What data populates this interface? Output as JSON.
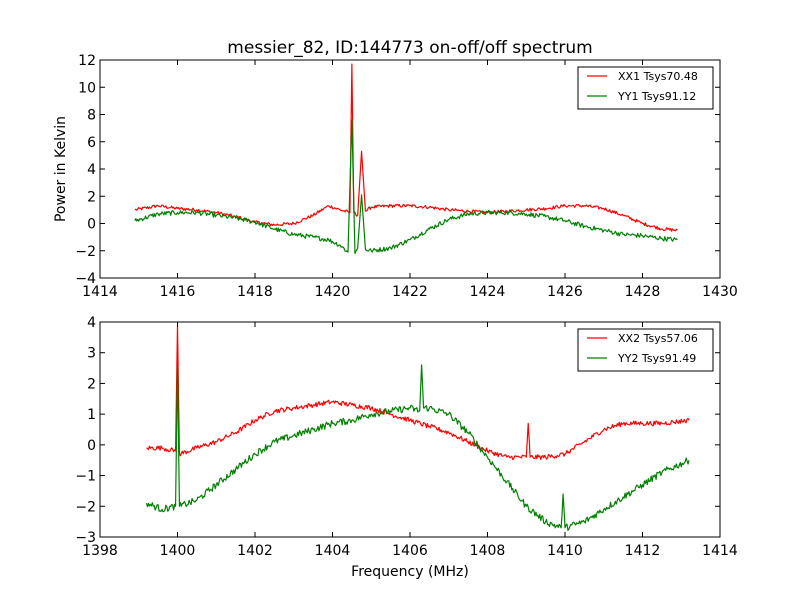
{
  "chart_data": [
    {
      "type": "line",
      "title": "messier_82, ID:144773 on-off/off spectrum",
      "xlabel": "",
      "ylabel": "Power in Kelvin",
      "xlim": [
        1414,
        1430
      ],
      "ylim": [
        -4,
        12
      ],
      "xticks": [
        "1414",
        "1416",
        "1418",
        "1420",
        "1422",
        "1424",
        "1426",
        "1428",
        "1430"
      ],
      "yticks": [
        "−4",
        "−2",
        "0",
        "2",
        "4",
        "6",
        "8",
        "10",
        "12"
      ],
      "grid": false,
      "legend": {
        "position": "top-right",
        "entries": [
          "XX1 Tsys70.48",
          "YY1 Tsys91.12"
        ]
      },
      "series": [
        {
          "name": "XX1 Tsys70.48",
          "color": "#ff0000",
          "x": [
            1414.9,
            1415.5,
            1416.0,
            1416.5,
            1417.0,
            1417.5,
            1418.0,
            1418.5,
            1419.0,
            1419.5,
            1419.9,
            1420.2,
            1420.45,
            1420.5,
            1420.55,
            1420.65,
            1420.75,
            1420.85,
            1421.0,
            1421.5,
            1422.0,
            1422.5,
            1423.0,
            1423.5,
            1424.0,
            1424.5,
            1425.0,
            1425.5,
            1426.0,
            1426.5,
            1427.0,
            1427.5,
            1428.0,
            1428.5,
            1428.9
          ],
          "y": [
            1.0,
            1.3,
            1.1,
            1.0,
            0.8,
            0.5,
            0.1,
            -0.1,
            0.0,
            0.6,
            1.3,
            1.0,
            0.8,
            11.7,
            0.8,
            0.6,
            5.3,
            0.9,
            1.2,
            1.3,
            1.3,
            1.2,
            1.0,
            0.9,
            0.8,
            0.9,
            1.0,
            1.1,
            1.3,
            1.3,
            1.1,
            0.6,
            0.0,
            -0.4,
            -0.5
          ]
        },
        {
          "name": "YY1 Tsys91.12",
          "color": "#008000",
          "x": [
            1414.9,
            1415.5,
            1416.0,
            1416.5,
            1417.0,
            1417.5,
            1418.0,
            1418.5,
            1419.0,
            1419.5,
            1419.9,
            1420.2,
            1420.4,
            1420.5,
            1420.58,
            1420.65,
            1420.75,
            1420.85,
            1421.0,
            1421.5,
            1422.0,
            1422.5,
            1423.0,
            1423.5,
            1424.0,
            1424.5,
            1425.0,
            1425.5,
            1426.0,
            1426.5,
            1427.0,
            1427.5,
            1428.0,
            1428.5,
            1428.9
          ],
          "y": [
            0.2,
            0.7,
            0.8,
            0.8,
            0.6,
            0.4,
            0.1,
            -0.4,
            -0.8,
            -1.0,
            -1.2,
            -1.6,
            -2.1,
            7.6,
            -2.2,
            -1.8,
            2.1,
            -1.9,
            -2.0,
            -1.8,
            -1.2,
            -0.4,
            0.3,
            0.7,
            0.8,
            0.8,
            0.7,
            0.5,
            0.2,
            -0.2,
            -0.5,
            -0.8,
            -0.9,
            -1.1,
            -1.2
          ]
        }
      ]
    },
    {
      "type": "line",
      "title": "",
      "xlabel": "Frequency (MHz)",
      "ylabel": "",
      "xlim": [
        1398,
        1414
      ],
      "ylim": [
        -3,
        4
      ],
      "xticks": [
        "1398",
        "1400",
        "1402",
        "1404",
        "1406",
        "1408",
        "1410",
        "1412",
        "1414"
      ],
      "yticks": [
        "−3",
        "−2",
        "−1",
        "0",
        "1",
        "2",
        "3",
        "4"
      ],
      "grid": false,
      "legend": {
        "position": "top-right",
        "entries": [
          "XX2 Tsys57.06",
          "YY2 Tsys91.49"
        ]
      },
      "series": [
        {
          "name": "XX2 Tsys57.06",
          "color": "#ff0000",
          "x": [
            1399.2,
            1399.6,
            1399.95,
            1400.0,
            1400.05,
            1400.5,
            1401.0,
            1401.5,
            1402.0,
            1402.5,
            1403.0,
            1403.5,
            1404.0,
            1404.5,
            1405.0,
            1405.5,
            1406.0,
            1406.5,
            1407.0,
            1407.5,
            1408.0,
            1408.5,
            1409.0,
            1409.05,
            1409.1,
            1409.5,
            1410.0,
            1410.5,
            1411.0,
            1411.5,
            1412.0,
            1412.5,
            1413.2
          ],
          "y": [
            -0.1,
            -0.1,
            -0.2,
            3.9,
            -0.3,
            -0.1,
            0.1,
            0.4,
            0.8,
            1.1,
            1.2,
            1.3,
            1.4,
            1.3,
            1.2,
            1.0,
            0.8,
            0.6,
            0.4,
            0.1,
            -0.2,
            -0.4,
            -0.4,
            0.7,
            -0.4,
            -0.4,
            -0.3,
            0.1,
            0.5,
            0.7,
            0.7,
            0.7,
            0.8
          ]
        },
        {
          "name": "YY2 Tsys91.49",
          "color": "#008000",
          "x": [
            1399.2,
            1399.6,
            1399.95,
            1400.0,
            1400.05,
            1400.5,
            1401.0,
            1401.5,
            1402.0,
            1402.5,
            1403.0,
            1403.5,
            1404.0,
            1404.5,
            1405.0,
            1405.5,
            1406.0,
            1406.25,
            1406.3,
            1406.35,
            1406.5,
            1407.0,
            1407.5,
            1408.0,
            1408.5,
            1409.0,
            1409.5,
            1409.9,
            1409.95,
            1410.0,
            1410.5,
            1411.0,
            1411.5,
            1412.0,
            1412.5,
            1413.2
          ],
          "y": [
            -1.9,
            -2.1,
            -2.0,
            2.6,
            -2.0,
            -1.8,
            -1.3,
            -0.8,
            -0.3,
            0.1,
            0.3,
            0.5,
            0.7,
            0.8,
            1.0,
            1.1,
            1.2,
            1.1,
            2.6,
            1.2,
            1.2,
            1.0,
            0.4,
            -0.4,
            -1.2,
            -2.0,
            -2.5,
            -2.7,
            -1.6,
            -2.7,
            -2.5,
            -2.1,
            -1.7,
            -1.3,
            -0.9,
            -0.5
          ]
        }
      ]
    }
  ]
}
